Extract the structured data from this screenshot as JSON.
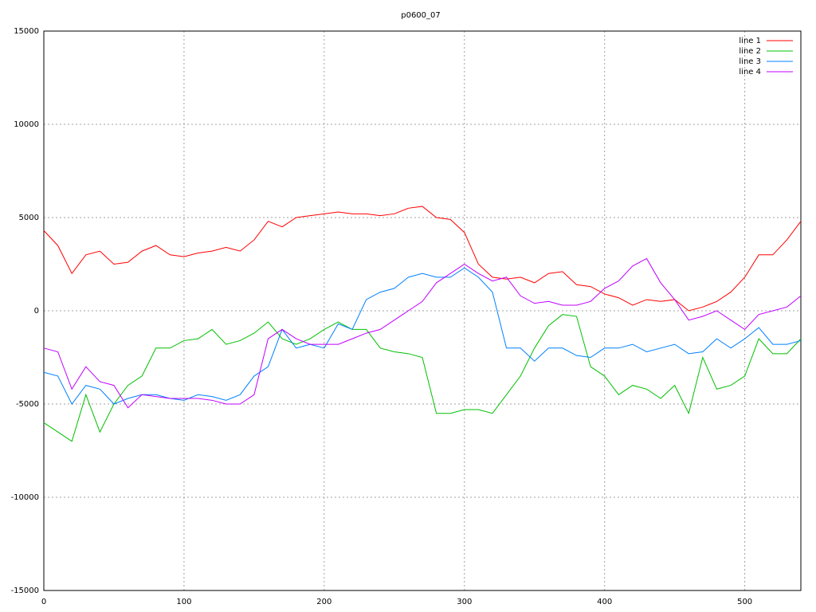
{
  "chart_data": {
    "type": "line",
    "title": "p0600_07",
    "x": [
      0,
      10,
      20,
      30,
      40,
      50,
      60,
      70,
      80,
      90,
      100,
      110,
      120,
      130,
      140,
      150,
      160,
      170,
      180,
      190,
      200,
      210,
      220,
      230,
      240,
      250,
      260,
      270,
      280,
      290,
      300,
      310,
      320,
      330,
      340,
      350,
      360,
      370,
      380,
      390,
      400,
      410,
      420,
      430,
      440,
      450,
      460,
      470,
      480,
      490,
      500,
      510,
      520,
      530,
      540
    ],
    "series": [
      {
        "name": "line 1",
        "color": "#ff0000",
        "values": [
          4300,
          3500,
          2000,
          3000,
          3200,
          2500,
          2600,
          3200,
          3500,
          3000,
          2900,
          3100,
          3200,
          3400,
          3200,
          3800,
          4800,
          4500,
          5000,
          5100,
          5200,
          5300,
          5200,
          5200,
          5100,
          5200,
          5500,
          5600,
          5000,
          4900,
          4200,
          2500,
          1800,
          1700,
          1800,
          1500,
          2000,
          2100,
          1400,
          1300,
          900,
          700,
          300,
          600,
          500,
          600,
          0,
          200,
          500,
          1000,
          1800,
          3000,
          3000,
          3800,
          4800
        ]
      },
      {
        "name": "line 2",
        "color": "#00c000",
        "values": [
          -6000,
          -6500,
          -7000,
          -4500,
          -6500,
          -5000,
          -4000,
          -3500,
          -2000,
          -2000,
          -1600,
          -1500,
          -1000,
          -1800,
          -1600,
          -1200,
          -600,
          -1500,
          -1800,
          -1500,
          -1000,
          -600,
          -1000,
          -1000,
          -2000,
          -2200,
          -2300,
          -2500,
          -5500,
          -5500,
          -5300,
          -5300,
          -5500,
          -4500,
          -3500,
          -2000,
          -800,
          -200,
          -300,
          -3000,
          -3500,
          -4500,
          -4000,
          -4200,
          -4700,
          -4000,
          -5500,
          -2500,
          -4200,
          -4000,
          -3500,
          -1500,
          -2300,
          -2300,
          -1500
        ]
      },
      {
        "name": "line 3",
        "color": "#0080ff",
        "values": [
          -3300,
          -3500,
          -5000,
          -4000,
          -4200,
          -5000,
          -4700,
          -4500,
          -4500,
          -4700,
          -4800,
          -4500,
          -4600,
          -4800,
          -4500,
          -3500,
          -3000,
          -1000,
          -2000,
          -1800,
          -2000,
          -700,
          -1000,
          600,
          1000,
          1200,
          1800,
          2000,
          1800,
          1800,
          2300,
          1800,
          1000,
          -2000,
          -2000,
          -2700,
          -2000,
          -2000,
          -2400,
          -2500,
          -2000,
          -2000,
          -1800,
          -2200,
          -2000,
          -1800,
          -2300,
          -2200,
          -1500,
          -2000,
          -1500,
          -900,
          -1800,
          -1800,
          -1600
        ]
      },
      {
        "name": "line 4",
        "color": "#c000ff",
        "values": [
          -2000,
          -2200,
          -4200,
          -3000,
          -3800,
          -4000,
          -5200,
          -4500,
          -4600,
          -4700,
          -4700,
          -4700,
          -4800,
          -5000,
          -5000,
          -4500,
          -1500,
          -1000,
          -1500,
          -1800,
          -1800,
          -1800,
          -1500,
          -1200,
          -1000,
          -500,
          0,
          500,
          1500,
          2000,
          2500,
          2000,
          1600,
          1800,
          800,
          400,
          500,
          300,
          300,
          500,
          1200,
          1600,
          2400,
          2800,
          1500,
          600,
          -500,
          -300,
          0,
          -500,
          -1000,
          -200,
          0,
          200,
          800
        ]
      }
    ],
    "xlim": [
      0,
      540
    ],
    "xticks": [
      0,
      100,
      200,
      300,
      400,
      500
    ],
    "ylim": [
      -15000,
      15000
    ],
    "yticks": [
      -15000,
      -10000,
      -5000,
      0,
      5000,
      10000,
      15000
    ],
    "grid": true,
    "legend": "top-right"
  }
}
